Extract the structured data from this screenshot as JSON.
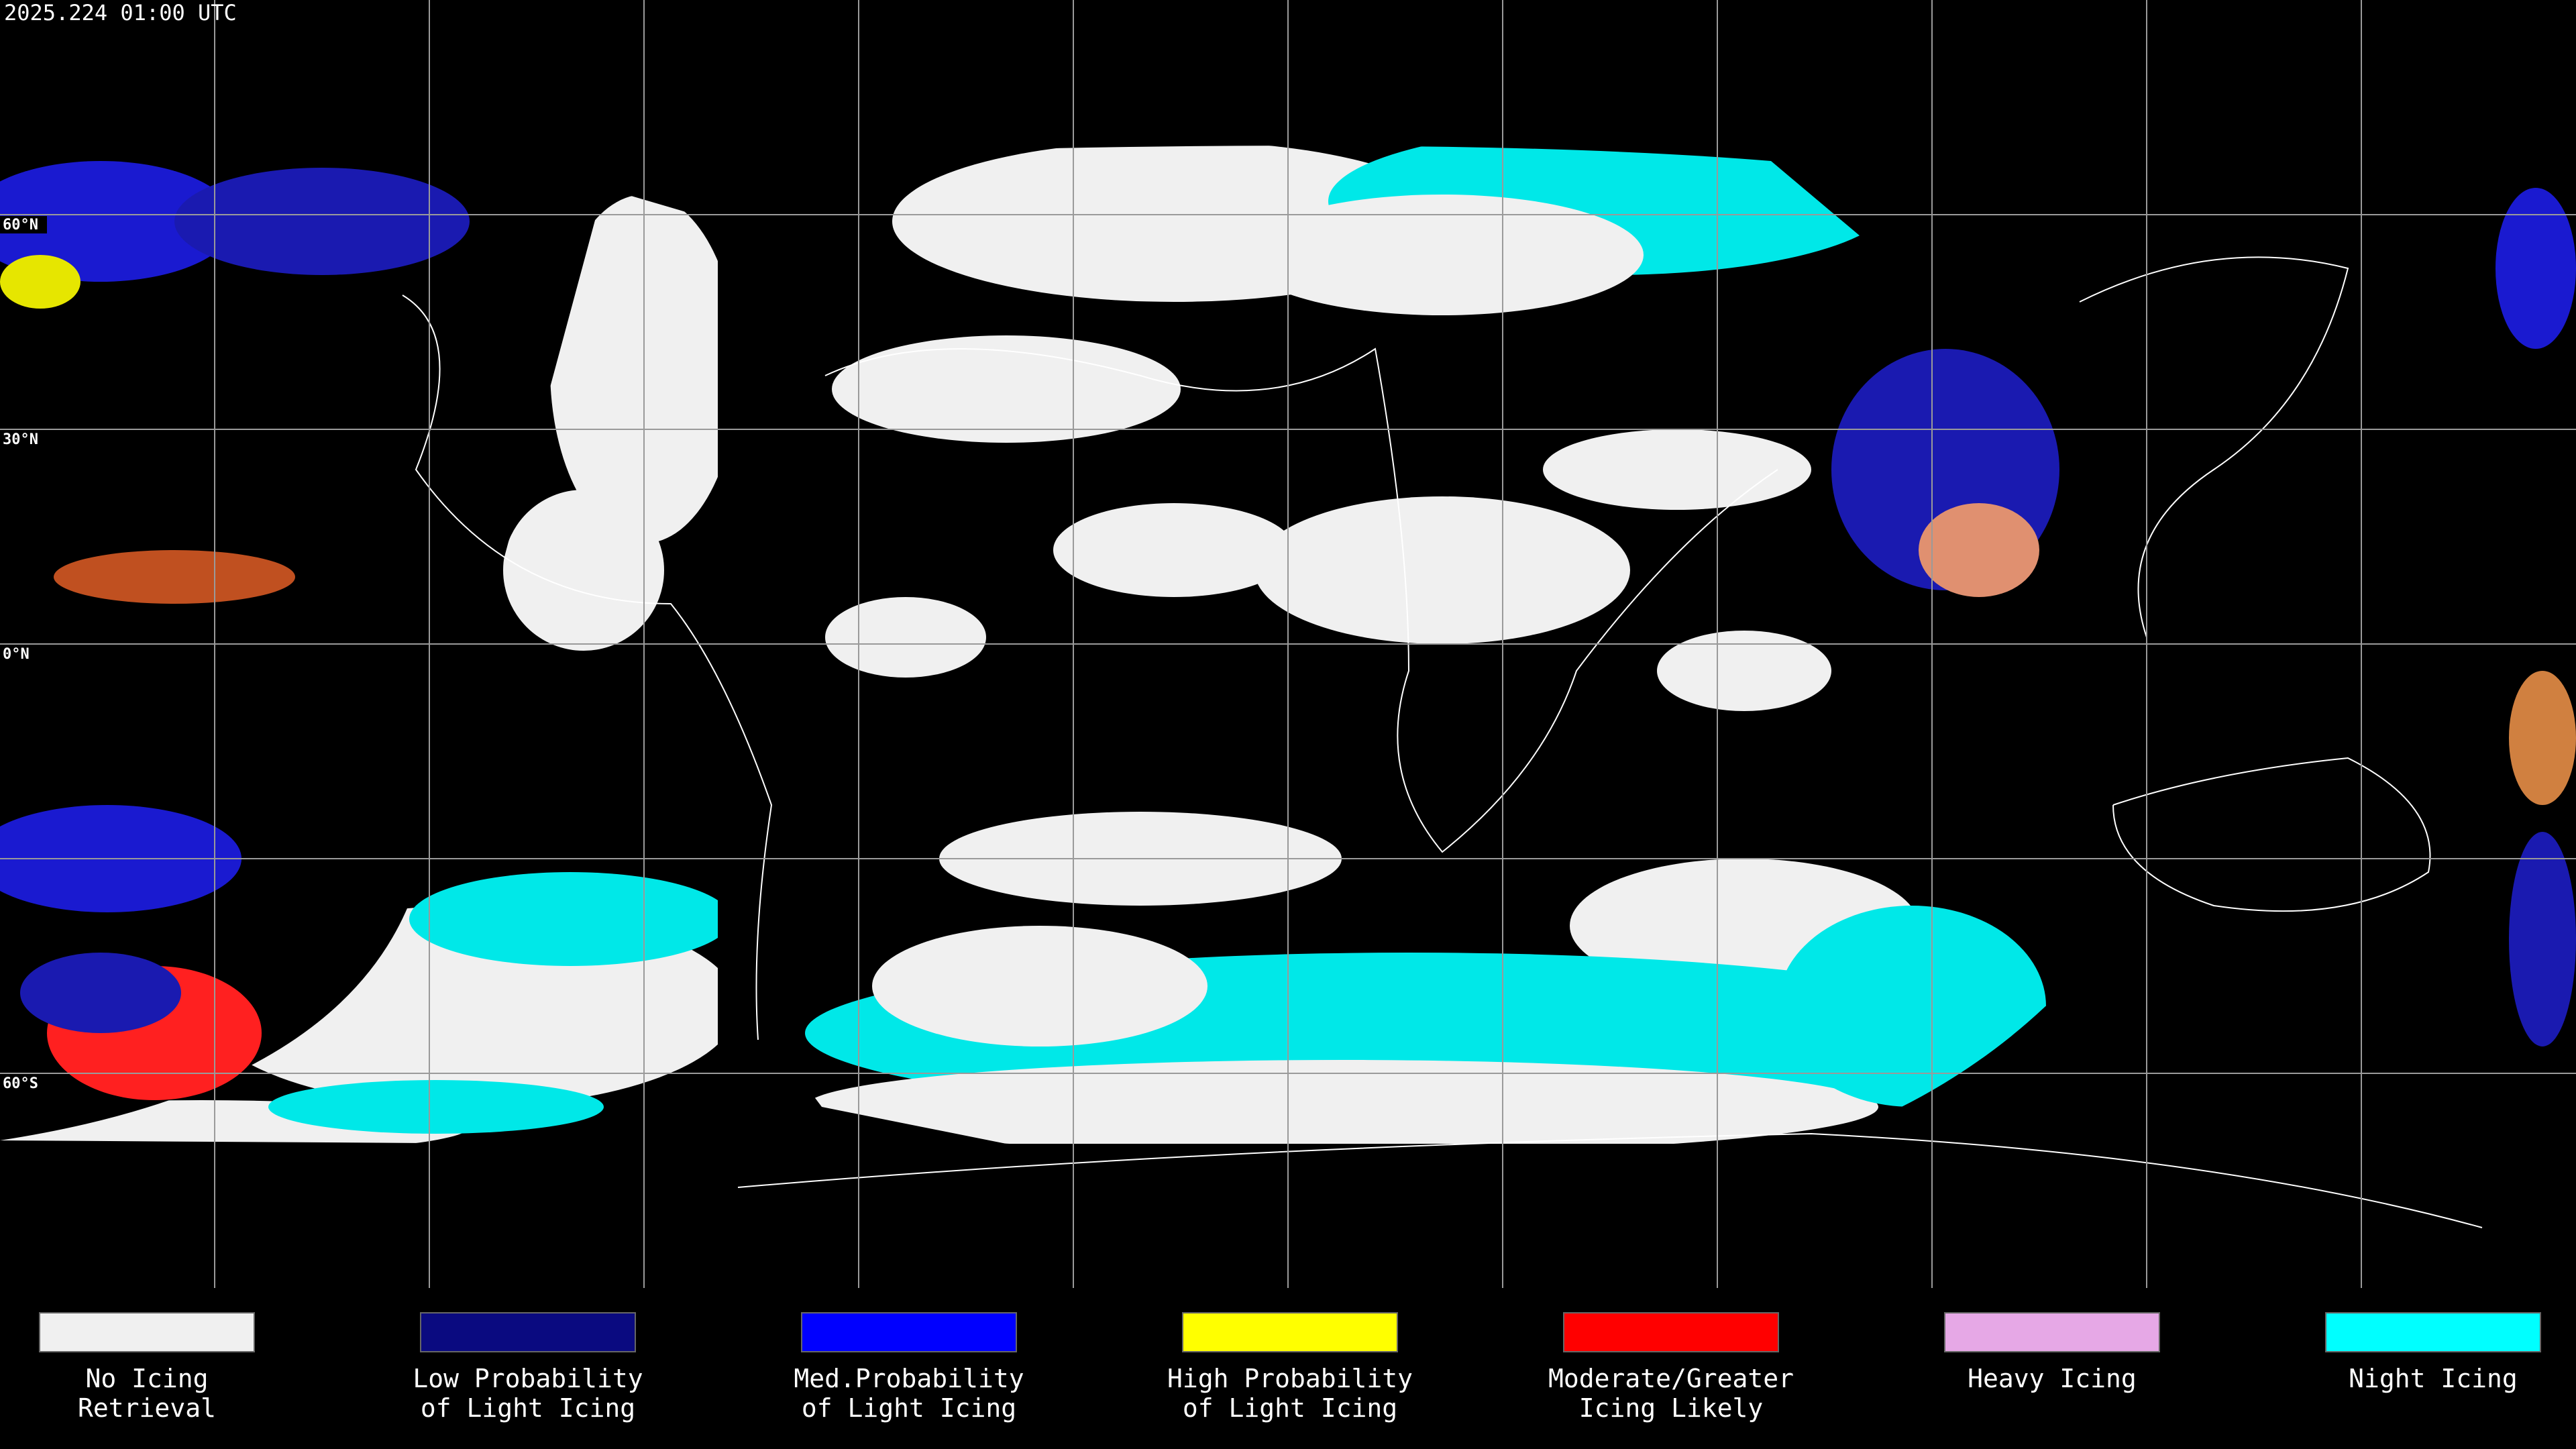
{
  "header": {
    "timestamp": "2025.224 01:00 UTC"
  },
  "map": {
    "latitude_labels": [
      "60°N",
      "30°N",
      "0°N",
      "60°S"
    ]
  },
  "legend": {
    "items": [
      {
        "lines": [
          "No Icing",
          "Retrieval"
        ],
        "color": "#f0f0f0"
      },
      {
        "lines": [
          "Low Probability",
          "of Light Icing"
        ],
        "color": "#0a0a80"
      },
      {
        "lines": [
          "Med.Probability",
          "of Light Icing"
        ],
        "color": "#0000ff"
      },
      {
        "lines": [
          "High Probability",
          "of Light Icing"
        ],
        "color": "#ffff00"
      },
      {
        "lines": [
          "Moderate/Greater",
          "Icing Likely"
        ],
        "color": "#ff0000"
      },
      {
        "lines": [
          "Heavy Icing"
        ],
        "color": "#e6a8e6"
      },
      {
        "lines": [
          "Night Icing"
        ],
        "color": "#00ffff"
      }
    ]
  }
}
